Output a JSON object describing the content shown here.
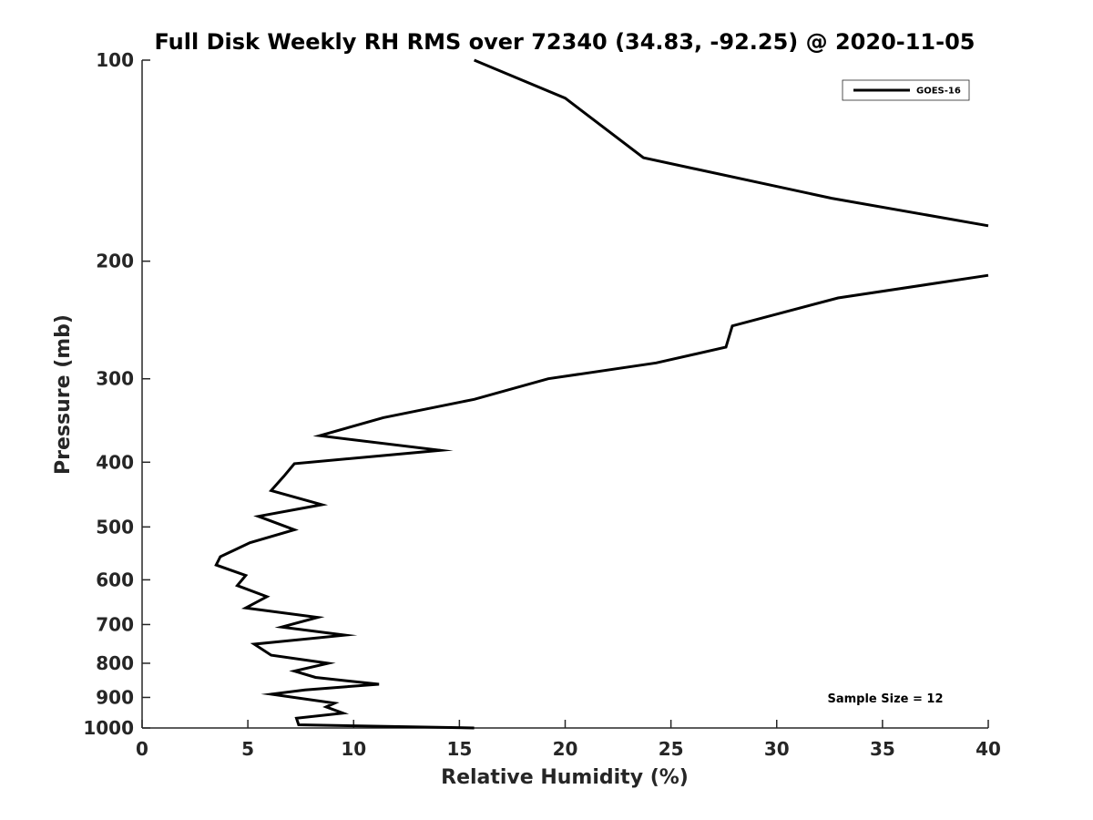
{
  "chart_data": {
    "type": "line",
    "title": "Full Disk Weekly RH RMS over 72340 (34.83, -92.25) @ 2020-11-05",
    "xlabel": "Relative Humidity (%)",
    "ylabel": "Pressure (mb)",
    "xlim": [
      0,
      40
    ],
    "ylim": [
      1000,
      100
    ],
    "yscale": "log",
    "y_reversed": true,
    "grid": false,
    "legend_placement": "top-right",
    "xticks": [
      0,
      5,
      10,
      15,
      20,
      25,
      30,
      35,
      40
    ],
    "xtick_labels": [
      "0",
      "5",
      "10",
      "15",
      "20",
      "25",
      "30",
      "35",
      "40"
    ],
    "yticks": [
      100,
      200,
      300,
      400,
      500,
      600,
      700,
      800,
      900,
      1000
    ],
    "ytick_labels": [
      "100",
      "200",
      "300",
      "400",
      "500",
      "600",
      "700",
      "800",
      "900",
      "1000"
    ],
    "annotation": "Sample Size = 12",
    "series": [
      {
        "name": "GOES-16",
        "color": "#000000",
        "segments": [
          {
            "x": [
              15.7,
              20.0,
              23.7,
              32.6,
              40.0
            ],
            "y": [
              100,
              114,
              140,
              161,
              177
            ]
          },
          {
            "x": [
              40.0,
              32.9,
              27.9,
              27.6,
              24.3,
              19.2,
              15.7,
              11.4,
              8.4,
              14.1,
              7.2,
              6.7,
              6.1,
              8.5,
              5.5,
              7.2,
              5.1,
              3.7,
              3.5,
              4.9,
              4.5,
              5.9,
              4.9,
              8.3,
              6.6,
              9.6,
              5.3,
              6.1,
              8.8,
              7.2,
              8.2,
              11.2,
              7.7,
              6.1,
              9.1,
              8.7,
              9.5,
              7.3,
              7.4,
              15.7
            ],
            "y": [
              210,
              227,
              250,
              269,
              284,
              300,
              322,
              343,
              365,
              384,
              402,
              420,
              441,
              463,
              482,
              505,
              528,
              554,
              570,
              591,
              612,
              636,
              661,
              683,
              706,
              726,
              749,
              778,
              800,
              822,
              840,
              860,
              877,
              890,
              918,
              930,
              950,
              967,
              989,
              1000
            ]
          }
        ]
      }
    ]
  }
}
